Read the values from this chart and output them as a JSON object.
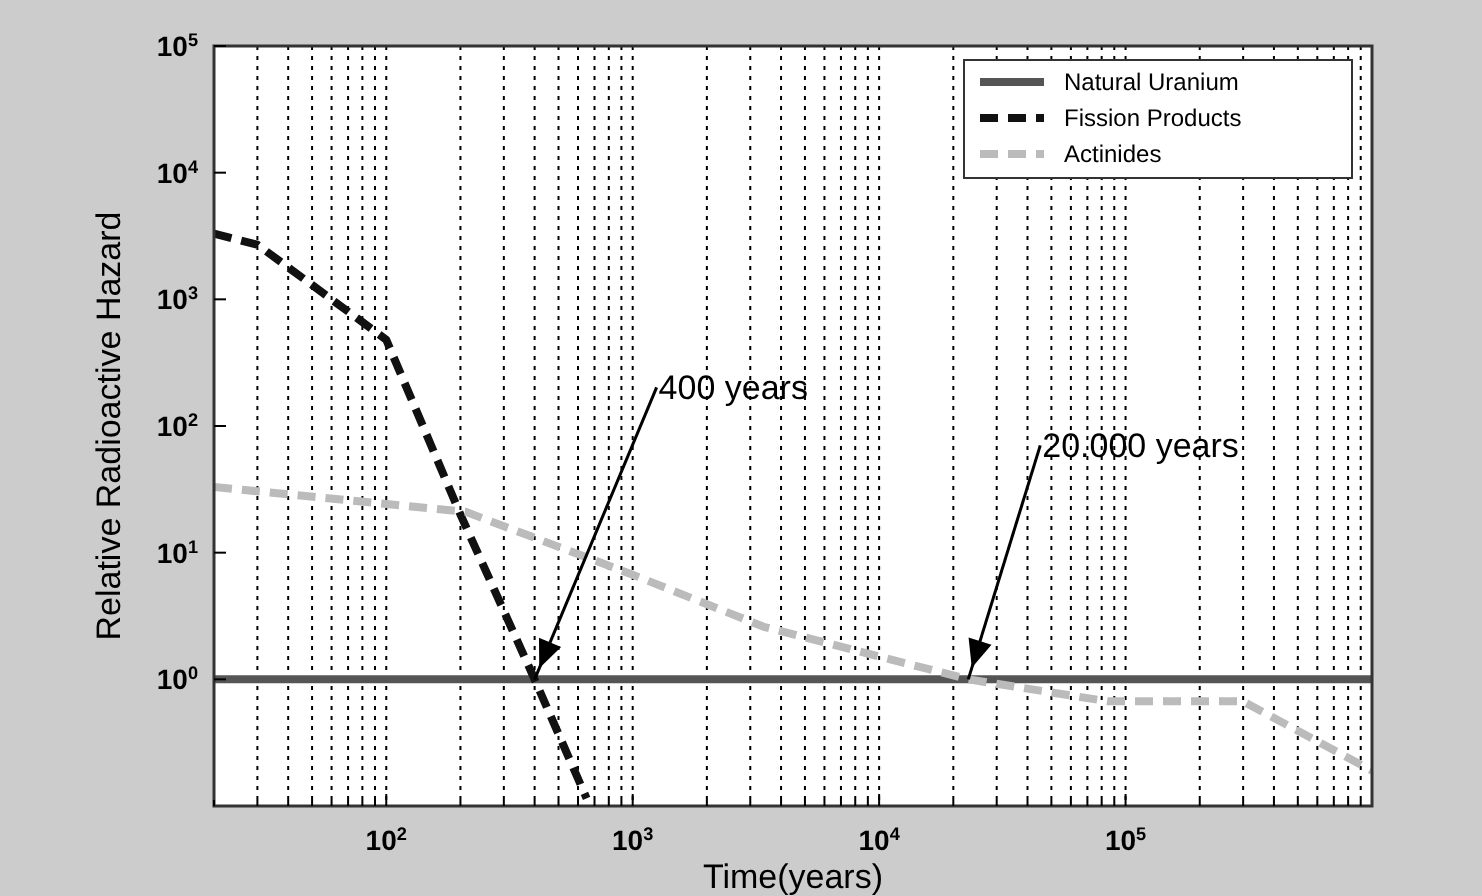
{
  "chart_data": {
    "type": "line",
    "xlabel": "Time(years)",
    "ylabel": "Relative Radioactive Hazard",
    "log": "xy",
    "grid": "x",
    "legend": "top right",
    "xlim": [
      20,
      1000000
    ],
    "ylim": [
      0.1,
      100000
    ],
    "xticks": [
      {
        "value": 20,
        "label": null
      },
      {
        "value": 30,
        "label": null
      },
      {
        "value": 40,
        "label": null
      },
      {
        "value": 50,
        "label": null
      },
      {
        "value": 60,
        "label": null
      },
      {
        "value": 70,
        "label": null
      },
      {
        "value": 80,
        "label": null
      },
      {
        "value": 90,
        "label": null
      },
      {
        "value": 100,
        "label": "10$^{2}$"
      },
      {
        "value": 200,
        "label": null
      },
      {
        "value": 300,
        "label": null
      },
      {
        "value": 400,
        "label": null
      },
      {
        "value": 500,
        "label": null
      },
      {
        "value": 600,
        "label": null
      },
      {
        "value": 700,
        "label": null
      },
      {
        "value": 800,
        "label": null
      },
      {
        "value": 900,
        "label": null
      },
      {
        "value": 1000,
        "label": "10$^{3}$"
      },
      {
        "value": 2000,
        "label": null
      },
      {
        "value": 3000,
        "label": null
      },
      {
        "value": 4000,
        "label": null
      },
      {
        "value": 5000,
        "label": null
      },
      {
        "value": 6000,
        "label": null
      },
      {
        "value": 7000,
        "label": null
      },
      {
        "value": 8000,
        "label": null
      },
      {
        "value": 9000,
        "label": null
      },
      {
        "value": 10000,
        "label": "10$^{4}$"
      },
      {
        "value": 20000,
        "label": null
      },
      {
        "value": 30000,
        "label": null
      },
      {
        "value": 40000,
        "label": null
      },
      {
        "value": 50000,
        "label": null
      },
      {
        "value": 60000,
        "label": null
      },
      {
        "value": 70000,
        "label": null
      },
      {
        "value": 80000,
        "label": null
      },
      {
        "value": 90000,
        "label": null
      },
      {
        "value": 100000,
        "label": "10$^{5}$"
      },
      {
        "value": 200000,
        "label": null
      },
      {
        "value": 300000,
        "label": null
      },
      {
        "value": 400000,
        "label": null
      },
      {
        "value": 500000,
        "label": null
      },
      {
        "value": 600000,
        "label": null
      },
      {
        "value": 700000,
        "label": null
      },
      {
        "value": 800000,
        "label": null
      },
      {
        "value": 900000,
        "label": null
      }
    ],
    "yticks": [
      {
        "value": 1,
        "label": "10$^{0}$"
      },
      {
        "value": 10,
        "label": "10$^{1}$"
      },
      {
        "value": 100,
        "label": "10$^{2}$"
      },
      {
        "value": 1000,
        "label": "10$^{3}$"
      },
      {
        "value": 10000,
        "label": "10$^{4}$"
      },
      {
        "value": 100000,
        "label": "10$^{5}$"
      }
    ],
    "series": [
      {
        "name": "Natural Uranium",
        "color": "#555555",
        "line_style": "solid",
        "x": [
          20,
          1000000
        ],
        "values": [
          1,
          1
        ]
      },
      {
        "name": "Fission Products",
        "color": "#111111",
        "line_style": "dashed",
        "x": [
          20,
          30,
          100,
          200,
          400,
          650
        ],
        "values": [
          3300,
          2700,
          480,
          20,
          1,
          0.115
        ]
      },
      {
        "name": "Actinides",
        "color": "#bbbbbb",
        "line_style": "dashed",
        "x": [
          20,
          210,
          1000,
          3400,
          23000,
          85000,
          300000,
          1000000
        ],
        "values": [
          33,
          21,
          6.7,
          2.6,
          1,
          0.67,
          0.67,
          0.19
        ]
      }
    ],
    "annotations": [
      {
        "text": "400 years",
        "x": 400,
        "y": 1
      },
      {
        "text": "20.000 years",
        "x": 23000,
        "y": 1
      }
    ]
  }
}
